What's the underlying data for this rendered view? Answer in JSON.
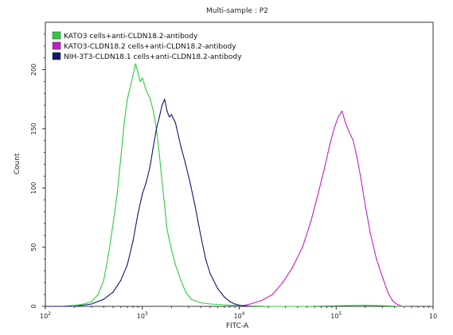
{
  "chart_data": {
    "type": "line",
    "title": "Multi-sample : P2",
    "xlabel": "FITC-A",
    "ylabel": "Count",
    "xscale": "log",
    "xlim": [
      100,
      1000000
    ],
    "ylim": [
      0,
      240
    ],
    "x_ticks": [
      {
        "value": 100,
        "base": "10",
        "exp": "2"
      },
      {
        "value": 1000,
        "base": "10",
        "exp": "3"
      },
      {
        "value": 10000,
        "base": "10",
        "exp": "4"
      },
      {
        "value": 100000,
        "base": "10",
        "exp": "5"
      },
      {
        "value": 1000000,
        "base": "10",
        "exp": ""
      }
    ],
    "y_ticks": [
      0,
      50,
      100,
      150,
      200
    ],
    "legend_position": "top-left",
    "series": [
      {
        "name": "KATO3 cells+anti-CLDN18.2-antibody",
        "color": "#2ecc40",
        "points": [
          [
            150,
            0
          ],
          [
            200,
            1
          ],
          [
            250,
            2
          ],
          [
            300,
            4
          ],
          [
            350,
            10
          ],
          [
            400,
            22
          ],
          [
            450,
            45
          ],
          [
            500,
            70
          ],
          [
            550,
            95
          ],
          [
            600,
            125
          ],
          [
            650,
            155
          ],
          [
            700,
            175
          ],
          [
            750,
            185
          ],
          [
            800,
            195
          ],
          [
            850,
            205
          ],
          [
            900,
            198
          ],
          [
            950,
            190
          ],
          [
            1000,
            193
          ],
          [
            1100,
            182
          ],
          [
            1200,
            176
          ],
          [
            1300,
            165
          ],
          [
            1400,
            150
          ],
          [
            1500,
            128
          ],
          [
            1600,
            105
          ],
          [
            1700,
            85
          ],
          [
            1800,
            65
          ],
          [
            2000,
            48
          ],
          [
            2200,
            35
          ],
          [
            2500,
            22
          ],
          [
            2800,
            12
          ],
          [
            3200,
            6
          ],
          [
            4000,
            3
          ],
          [
            5000,
            2
          ],
          [
            8000,
            1
          ],
          [
            20000,
            0
          ],
          [
            50000,
            0
          ],
          [
            200000,
            1
          ],
          [
            500000,
            0
          ]
        ]
      },
      {
        "name": "KATO3-CLDN18.2 cells+anti-CLDN18.2-antibody",
        "color": "#c21ec8",
        "points": [
          [
            10000,
            0
          ],
          [
            13000,
            2
          ],
          [
            17000,
            5
          ],
          [
            22000,
            10
          ],
          [
            28000,
            20
          ],
          [
            35000,
            32
          ],
          [
            45000,
            50
          ],
          [
            55000,
            72
          ],
          [
            65000,
            95
          ],
          [
            75000,
            115
          ],
          [
            85000,
            135
          ],
          [
            95000,
            150
          ],
          [
            105000,
            160
          ],
          [
            115000,
            165
          ],
          [
            125000,
            155
          ],
          [
            135000,
            148
          ],
          [
            150000,
            140
          ],
          [
            165000,
            125
          ],
          [
            180000,
            108
          ],
          [
            200000,
            85
          ],
          [
            225000,
            62
          ],
          [
            260000,
            40
          ],
          [
            300000,
            25
          ],
          [
            340000,
            12
          ],
          [
            380000,
            5
          ],
          [
            420000,
            2
          ],
          [
            480000,
            0
          ]
        ]
      },
      {
        "name": "NIH-3T3-CLDN18.1 cells+anti-CLDN18.2-antibody",
        "color": "#141470",
        "points": [
          [
            100,
            0
          ],
          [
            200,
            0
          ],
          [
            300,
            2
          ],
          [
            400,
            6
          ],
          [
            500,
            12
          ],
          [
            600,
            22
          ],
          [
            700,
            35
          ],
          [
            800,
            55
          ],
          [
            900,
            78
          ],
          [
            1000,
            95
          ],
          [
            1100,
            105
          ],
          [
            1200,
            118
          ],
          [
            1300,
            135
          ],
          [
            1400,
            150
          ],
          [
            1500,
            160
          ],
          [
            1600,
            170
          ],
          [
            1700,
            175
          ],
          [
            1800,
            165
          ],
          [
            1900,
            160
          ],
          [
            2000,
            162
          ],
          [
            2200,
            155
          ],
          [
            2500,
            135
          ],
          [
            2800,
            120
          ],
          [
            3100,
            105
          ],
          [
            3500,
            85
          ],
          [
            4000,
            60
          ],
          [
            4500,
            40
          ],
          [
            5000,
            28
          ],
          [
            6000,
            15
          ],
          [
            7000,
            8
          ],
          [
            8000,
            4
          ],
          [
            9000,
            2
          ],
          [
            10000,
            1
          ],
          [
            12000,
            0
          ]
        ]
      }
    ]
  }
}
